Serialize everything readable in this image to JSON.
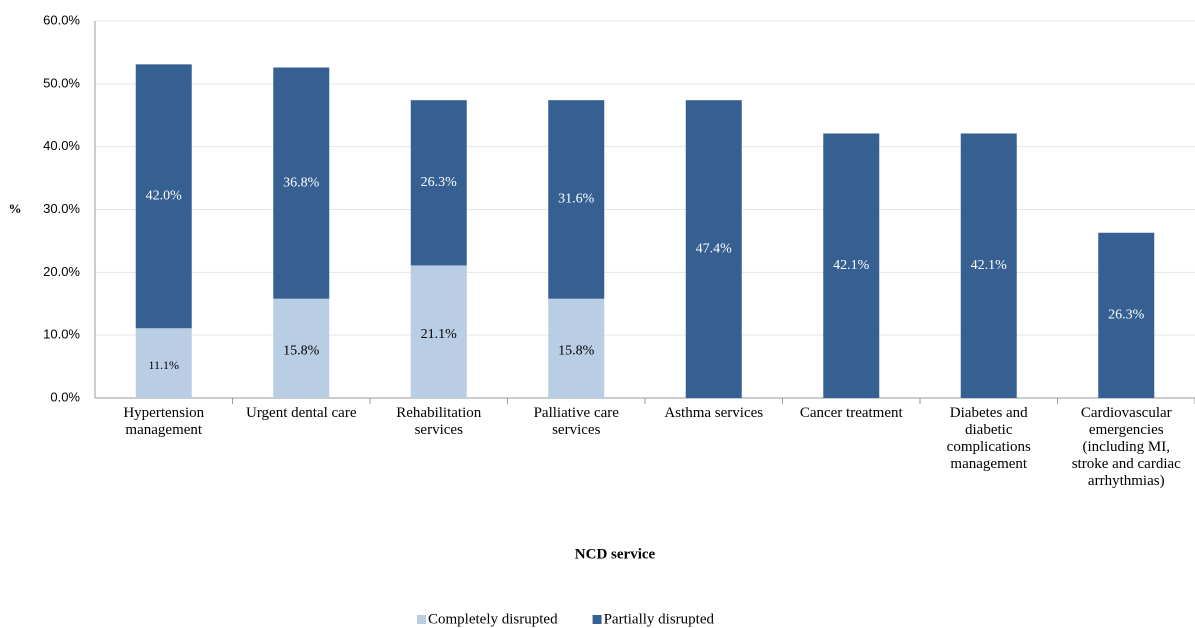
{
  "chart_data": {
    "type": "stacked_bar",
    "x_label": "NCD service",
    "y_label": "%",
    "categories": [
      "Hypertension management",
      "Urgent dental care",
      "Rehabilitation services",
      "Palliative care services",
      "Asthma services",
      "Cancer treatment",
      "Diabetes and diabetic complications management",
      "Cardiovascular emergencies (including MI, stroke and cardiac arrhythmias)"
    ],
    "series": [
      {
        "name": "Completely disrupted",
        "color": "#b9cde5",
        "values": [
          11.1,
          15.8,
          21.1,
          15.8,
          null,
          null,
          null,
          null
        ],
        "value_labels": [
          "11.1%",
          "15.8%",
          "21.1%",
          "15.8%",
          null,
          null,
          null,
          null
        ]
      },
      {
        "name": "Partially disrupted",
        "color": "#366092",
        "values": [
          42.0,
          36.8,
          26.3,
          31.6,
          47.4,
          42.1,
          42.1,
          26.3
        ],
        "value_labels": [
          "42.0%",
          "36.8%",
          "26.3%",
          "31.6%",
          "47.4%",
          "42.1%",
          "42.1%",
          "26.3%"
        ]
      }
    ],
    "ylim": [
      0,
      60
    ],
    "yticks": [
      {
        "value": 0,
        "label": "0.0%"
      },
      {
        "value": 10,
        "label": "10.0%"
      },
      {
        "value": 20,
        "label": "20.0%"
      },
      {
        "value": 30,
        "label": "30.0%"
      },
      {
        "value": 40,
        "label": "40.0%"
      },
      {
        "value": 50,
        "label": "50.0%"
      },
      {
        "value": 60,
        "label": "60.0%"
      }
    ],
    "grid": true,
    "legend": "bottom"
  }
}
